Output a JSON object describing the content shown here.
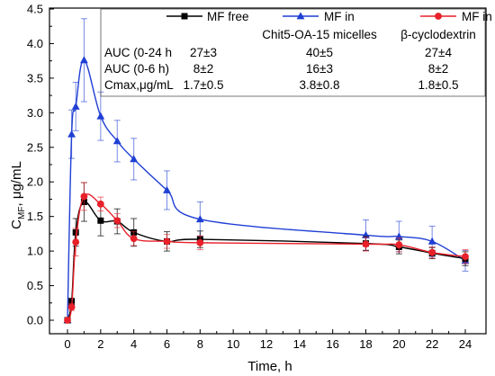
{
  "chart_data": {
    "type": "line",
    "xlabel": "Time, h",
    "ylabel_main": "C",
    "ylabel_sub": "MF",
    "ylabel_unit": ", μg/mL",
    "xlim": [
      0,
      24
    ],
    "ylim": [
      0,
      4.5
    ],
    "x_ticks": [
      0,
      2,
      4,
      6,
      8,
      10,
      12,
      14,
      16,
      18,
      20,
      22,
      24
    ],
    "y_ticks": [
      0.0,
      0.5,
      1.0,
      1.5,
      2.0,
      2.5,
      3.0,
      3.5,
      4.0,
      4.5
    ],
    "series": [
      {
        "name_line1": "MF free",
        "name_line2": "",
        "color": "#000000",
        "marker": "square",
        "points": [
          {
            "x": 0,
            "y": 0.0,
            "err": 0.02
          },
          {
            "x": 0.25,
            "y": 0.27,
            "err": 0.05
          },
          {
            "x": 0.5,
            "y": 1.27,
            "err": 0.2
          },
          {
            "x": 1,
            "y": 1.71,
            "err": 0.28
          },
          {
            "x": 2,
            "y": 1.44,
            "err": 0.22
          },
          {
            "x": 3,
            "y": 1.43,
            "err": 0.18
          },
          {
            "x": 4,
            "y": 1.27,
            "err": 0.2
          },
          {
            "x": 6,
            "y": 1.14,
            "err": 0.14
          },
          {
            "x": 8,
            "y": 1.17,
            "err": 0.12
          },
          {
            "x": 18,
            "y": 1.11,
            "err": 0.1
          },
          {
            "x": 20,
            "y": 1.06,
            "err": 0.1
          },
          {
            "x": 22,
            "y": 0.97,
            "err": 0.08
          },
          {
            "x": 24,
            "y": 0.89,
            "err": 0.1
          }
        ]
      },
      {
        "name_line1": "MF in",
        "name_line2": "Chit5-OA-15 micelles",
        "color": "#1f3fd4",
        "marker": "triangle",
        "points": [
          {
            "x": 0,
            "y": 0.0,
            "err": 0.02
          },
          {
            "x": 0.25,
            "y": 2.69,
            "err": 0.35
          },
          {
            "x": 0.5,
            "y": 3.09,
            "err": 0.35
          },
          {
            "x": 1,
            "y": 3.76,
            "err": 0.6
          },
          {
            "x": 2,
            "y": 2.95,
            "err": 0.35
          },
          {
            "x": 3,
            "y": 2.59,
            "err": 0.3
          },
          {
            "x": 4,
            "y": 2.33,
            "err": 0.3
          },
          {
            "x": 6,
            "y": 1.88,
            "err": 0.28
          },
          {
            "x": 8,
            "y": 1.46,
            "err": 0.25
          },
          {
            "x": 18,
            "y": 1.23,
            "err": 0.22
          },
          {
            "x": 20,
            "y": 1.21,
            "err": 0.22
          },
          {
            "x": 22,
            "y": 1.14,
            "err": 0.22
          },
          {
            "x": 24,
            "y": 0.86,
            "err": 0.15
          }
        ]
      },
      {
        "name_line1": "MF in",
        "name_line2": "β-cyclodextrin",
        "color": "#e8202a",
        "marker": "circle",
        "points": [
          {
            "x": 0,
            "y": 0.0,
            "err": 0.02
          },
          {
            "x": 0.25,
            "y": 0.19,
            "err": 0.05
          },
          {
            "x": 0.5,
            "y": 1.13,
            "err": 0.2
          },
          {
            "x": 1,
            "y": 1.79,
            "err": 0.2
          },
          {
            "x": 2,
            "y": 1.68,
            "err": 0.1
          },
          {
            "x": 3,
            "y": 1.44,
            "err": 0.1
          },
          {
            "x": 4,
            "y": 1.18,
            "err": 0.1
          },
          {
            "x": 6,
            "y": 1.14,
            "err": 0.1
          },
          {
            "x": 8,
            "y": 1.12,
            "err": 0.1
          },
          {
            "x": 18,
            "y": 1.1,
            "err": 0.1
          },
          {
            "x": 20,
            "y": 1.09,
            "err": 0.1
          },
          {
            "x": 22,
            "y": 0.98,
            "err": 0.08
          },
          {
            "x": 24,
            "y": 0.92,
            "err": 0.1
          }
        ]
      }
    ],
    "table": {
      "rows": [
        {
          "label": "AUC (0-24 h",
          "values": [
            "27±3",
            "40±5",
            "27±4"
          ]
        },
        {
          "label": "AUC (0-6 h)",
          "values": [
            "8±2",
            "16±3",
            "8±2"
          ]
        },
        {
          "label": "Cmax,μg/mL",
          "values": [
            "1.7±0.5",
            "3.8±0.8",
            "1.8±0.5"
          ]
        }
      ]
    }
  }
}
